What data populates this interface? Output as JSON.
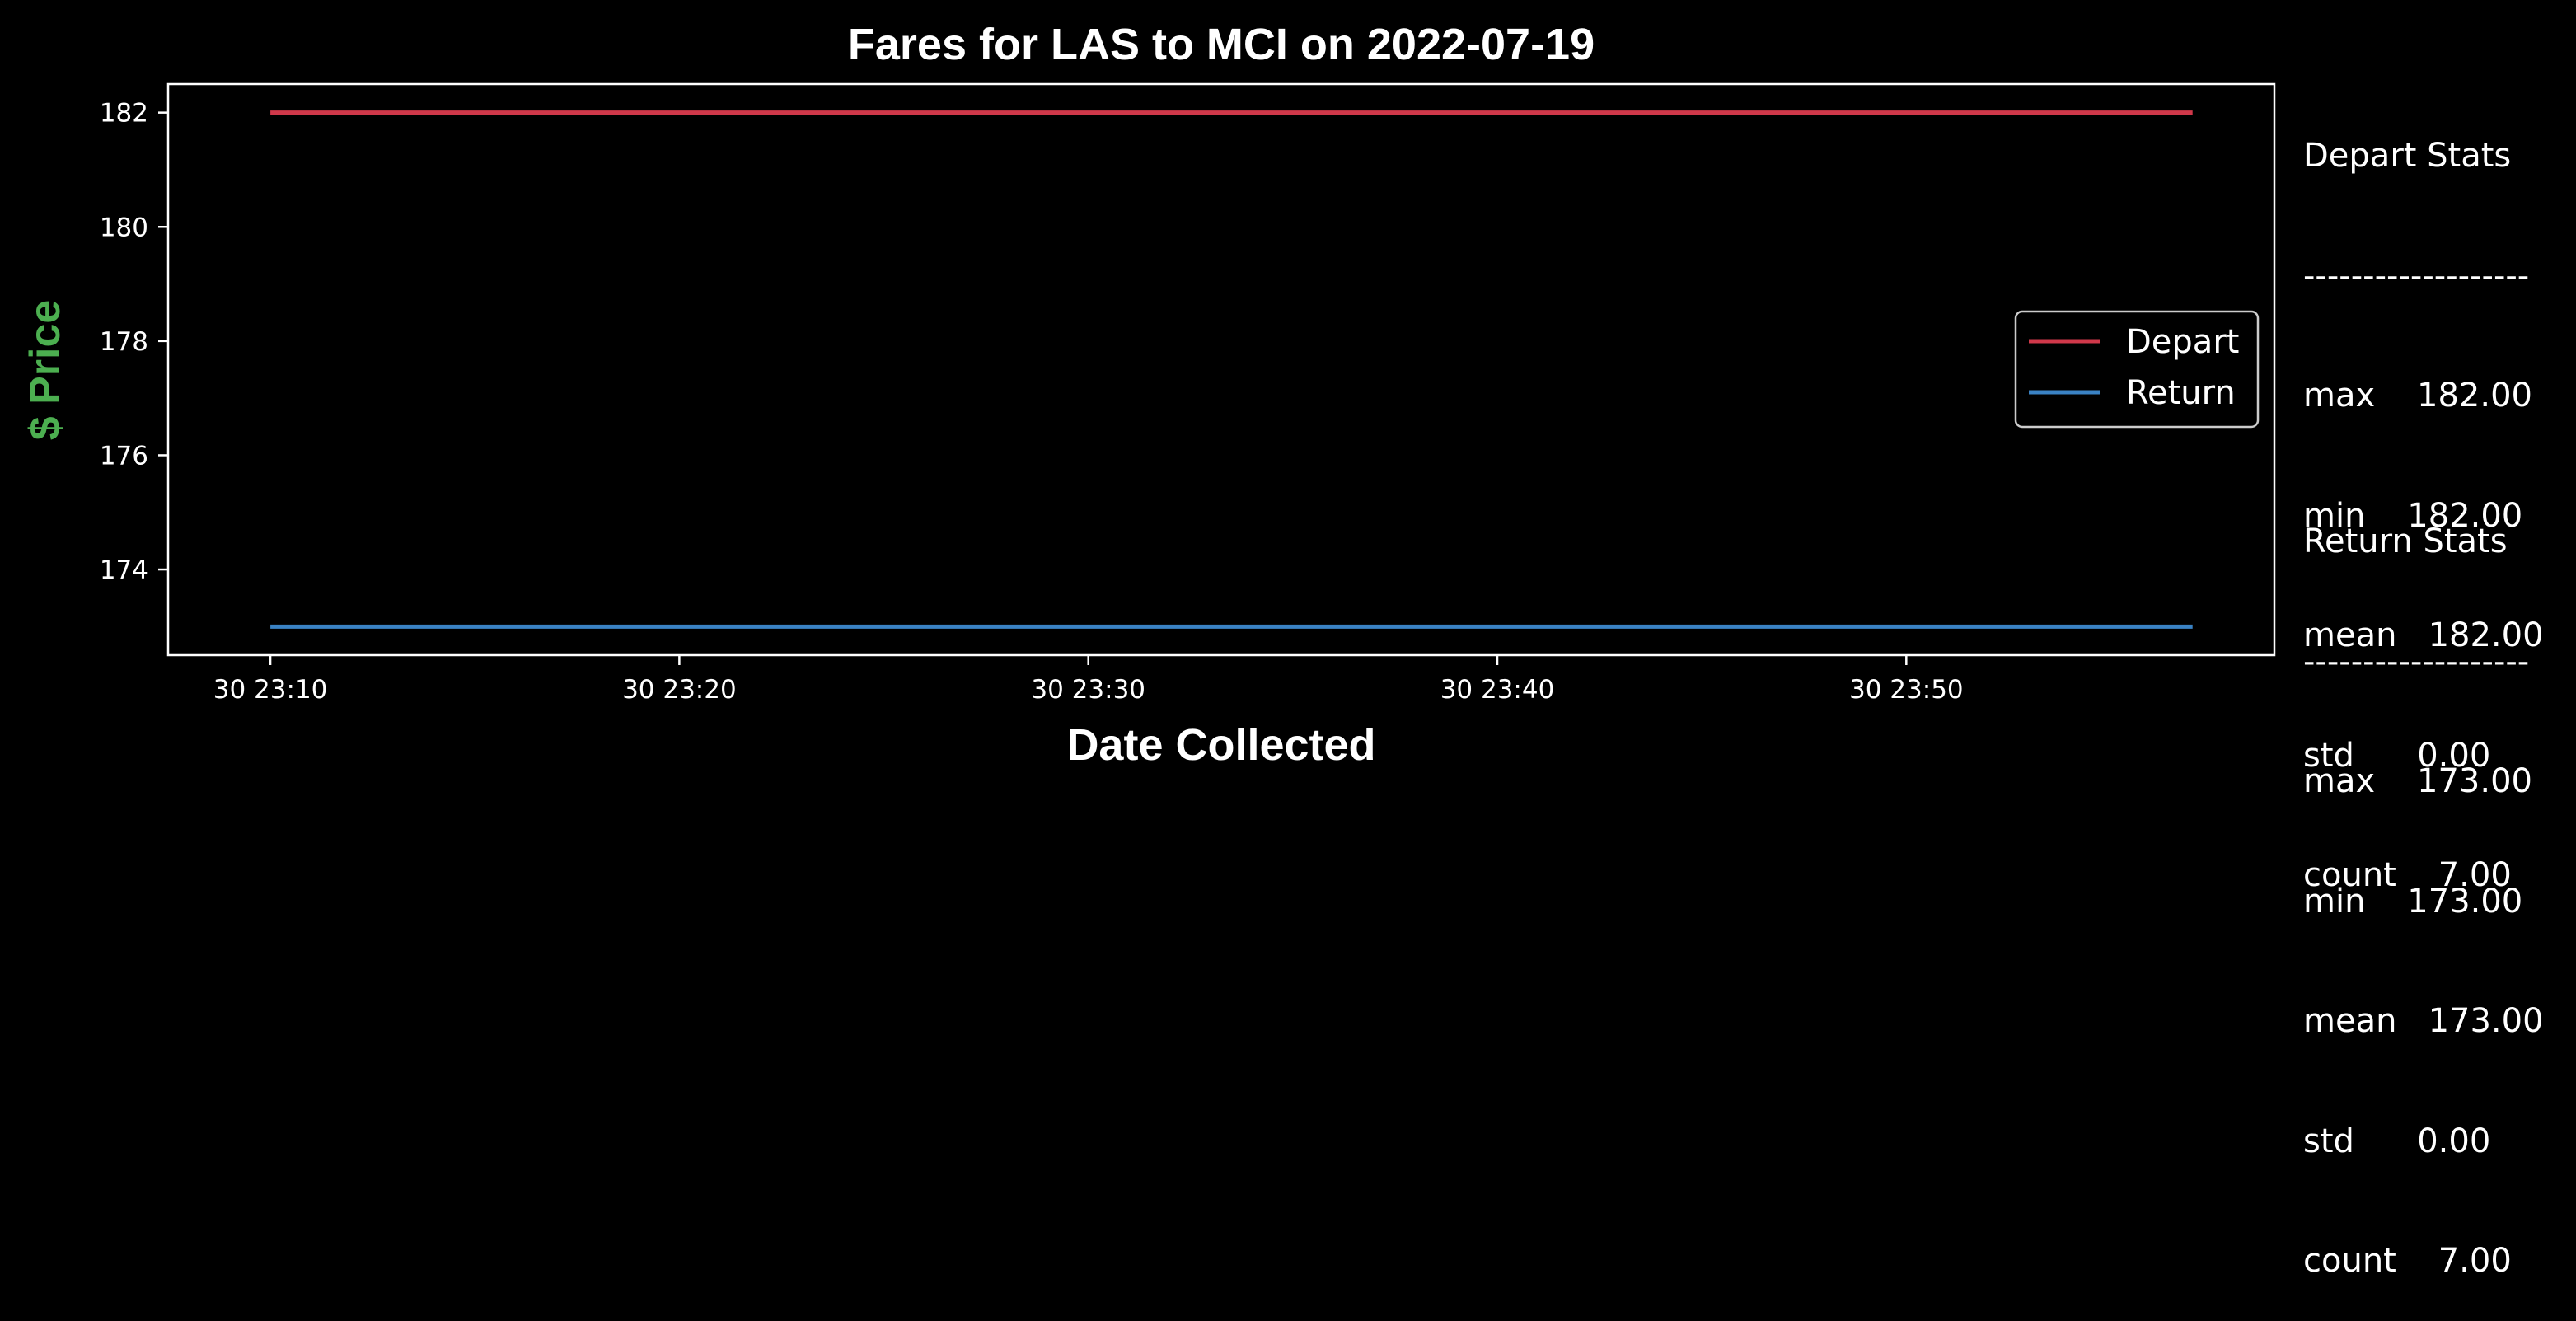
{
  "chart_data": {
    "type": "line",
    "title": "Fares for LAS to MCI on 2022-07-19",
    "xlabel": "Date Collected",
    "ylabel": "$ Price",
    "x_ticks": [
      "30 23:10",
      "30 23:20",
      "30 23:30",
      "30 23:40",
      "30 23:50"
    ],
    "y_ticks": [
      "174",
      "176",
      "178",
      "180",
      "182"
    ],
    "ylim": [
      172.5,
      182.5
    ],
    "xlim_minutes": [
      7.5,
      59.0
    ],
    "x_tick_minutes": [
      10,
      20,
      30,
      40,
      50
    ],
    "x": [
      "30 23:10:00",
      "30 23:17:50",
      "30 23:25:40",
      "30 23:33:30",
      "30 23:41:20",
      "30 23:49:10",
      "30 23:57:00"
    ],
    "x_minutes": [
      10.0,
      17.833,
      25.667,
      33.5,
      41.333,
      49.167,
      57.0
    ],
    "series": [
      {
        "name": "Depart",
        "color": "#d0384a",
        "values": [
          182,
          182,
          182,
          182,
          182,
          182,
          182
        ]
      },
      {
        "name": "Return",
        "color": "#3a82c4",
        "values": [
          173,
          173,
          173,
          173,
          173,
          173,
          173
        ]
      }
    ],
    "legend_position": "center-right",
    "grid": false
  },
  "stats": {
    "depart": {
      "header": "Depart Stats",
      "divider": "-------------------",
      "rows": [
        "max    182.00",
        "min    182.00",
        "mean   182.00",
        "std      0.00",
        "count    7.00"
      ]
    },
    "return": {
      "header": "Return Stats",
      "divider": "-------------------",
      "rows": [
        "max    173.00",
        "min    173.00",
        "mean   173.00",
        "std      0.00",
        "count    7.00"
      ]
    }
  }
}
